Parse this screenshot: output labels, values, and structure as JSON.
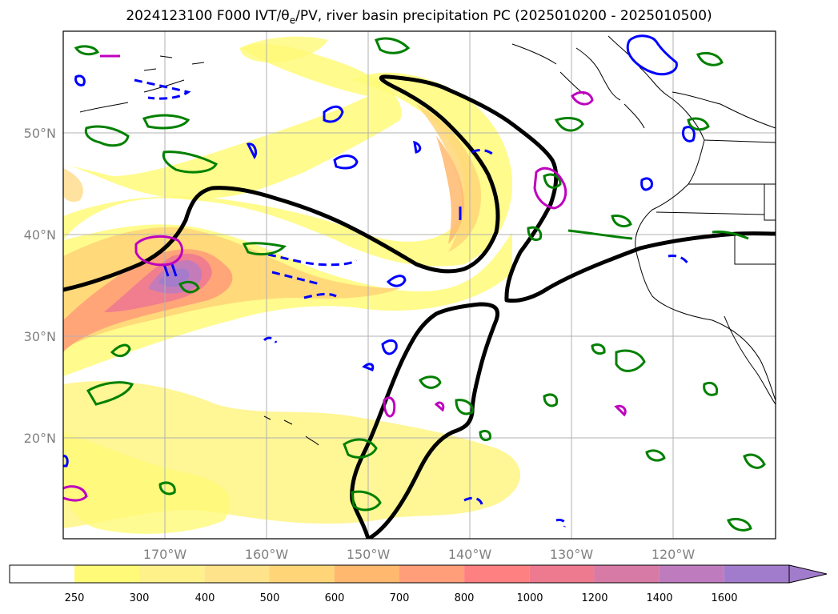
{
  "title": "2024123100 F000 IVT/θe/PV, river basin precipitation PC (2025010200 - 2025010500)",
  "map": {
    "projection": "PlateCarree",
    "lon_range": [
      -180,
      -110
    ],
    "lat_range": [
      10,
      60
    ],
    "grid": true,
    "lat_ticks": [
      {
        "value": 20,
        "label": "20°N"
      },
      {
        "value": 30,
        "label": "30°N"
      },
      {
        "value": 40,
        "label": "40°N"
      },
      {
        "value": 50,
        "label": "50°N"
      }
    ],
    "lon_ticks": [
      {
        "value": -170,
        "label": "170°W"
      },
      {
        "value": -160,
        "label": "160°W"
      },
      {
        "value": -150,
        "label": "150°W"
      },
      {
        "value": -140,
        "label": "140°W"
      },
      {
        "value": -130,
        "label": "130°W"
      },
      {
        "value": -120,
        "label": "120°W"
      }
    ]
  },
  "colorbar": {
    "ticks": [
      "250",
      "300",
      "400",
      "500",
      "600",
      "700",
      "800",
      "1000",
      "1200",
      "1400",
      "1600"
    ],
    "colors": [
      "#ffffff",
      "#fffa78",
      "#fff18a",
      "#ffe38a",
      "#ffd578",
      "#ffb86e",
      "#ff9e78",
      "#ff8080",
      "#ee7a90",
      "#d87aa6",
      "#be7cbe",
      "#a27ccc"
    ],
    "extend": "max"
  },
  "colors": {
    "theta_e_contour": "#000000",
    "pv_contour": "#0000ff",
    "pc_contour_green": "#008000",
    "pc_contour_magenta": "#bf00bf",
    "coastline": "#000000",
    "gridline": "#b0b0b0"
  }
}
